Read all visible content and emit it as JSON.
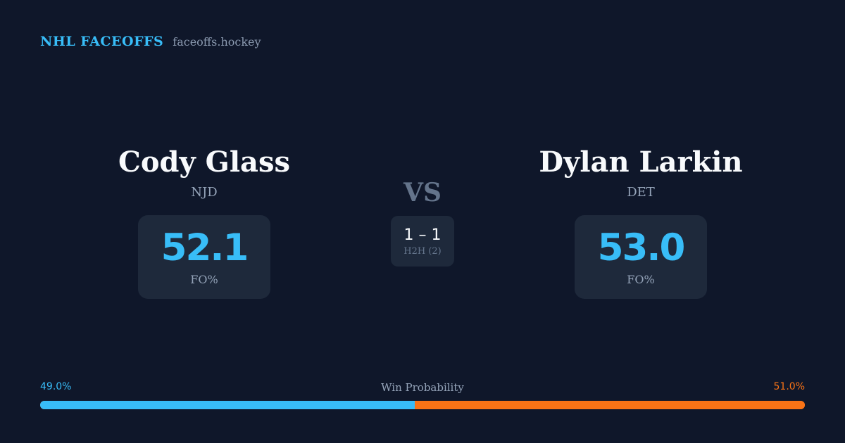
{
  "brand": {
    "name": "NHL FACEOFFS",
    "site": "faceoffs.hockey"
  },
  "players": [
    {
      "name": "Cody Glass",
      "team": "NJD",
      "stat_value": "52.1",
      "stat_label": "FO%"
    },
    {
      "name": "Dylan Larkin",
      "team": "DET",
      "stat_value": "53.0",
      "stat_label": "FO%"
    }
  ],
  "versus": {
    "label": "VS",
    "h2h_score": "1 – 1",
    "h2h_label": "H2H (2)"
  },
  "win_probability": {
    "title": "Win Probability",
    "left_label": "49.0%",
    "right_label": "51.0%",
    "left_value": 49.0,
    "right_value": 51.0,
    "left_color": "#38bdf8",
    "right_color": "#f97316"
  }
}
